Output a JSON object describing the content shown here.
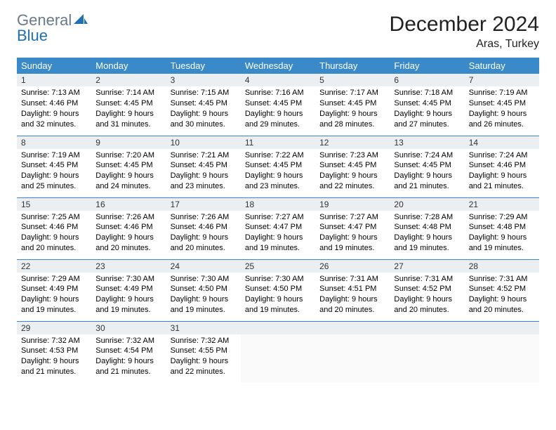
{
  "logo": {
    "gray_text": "General",
    "blue_text": "Blue"
  },
  "title": "December 2024",
  "location": "Aras, Turkey",
  "colors": {
    "header_bg": "#3a8ac9",
    "header_text": "#ffffff",
    "daynum_bg": "#eceff1",
    "row_divider": "#3a8ac9",
    "logo_gray": "#6a7a8a",
    "logo_blue": "#1f6fb2"
  },
  "weekdays": [
    "Sunday",
    "Monday",
    "Tuesday",
    "Wednesday",
    "Thursday",
    "Friday",
    "Saturday"
  ],
  "days": [
    {
      "n": 1,
      "sr": "7:13 AM",
      "ss": "4:46 PM",
      "dl": "9 hours and 32 minutes."
    },
    {
      "n": 2,
      "sr": "7:14 AM",
      "ss": "4:45 PM",
      "dl": "9 hours and 31 minutes."
    },
    {
      "n": 3,
      "sr": "7:15 AM",
      "ss": "4:45 PM",
      "dl": "9 hours and 30 minutes."
    },
    {
      "n": 4,
      "sr": "7:16 AM",
      "ss": "4:45 PM",
      "dl": "9 hours and 29 minutes."
    },
    {
      "n": 5,
      "sr": "7:17 AM",
      "ss": "4:45 PM",
      "dl": "9 hours and 28 minutes."
    },
    {
      "n": 6,
      "sr": "7:18 AM",
      "ss": "4:45 PM",
      "dl": "9 hours and 27 minutes."
    },
    {
      "n": 7,
      "sr": "7:19 AM",
      "ss": "4:45 PM",
      "dl": "9 hours and 26 minutes."
    },
    {
      "n": 8,
      "sr": "7:19 AM",
      "ss": "4:45 PM",
      "dl": "9 hours and 25 minutes."
    },
    {
      "n": 9,
      "sr": "7:20 AM",
      "ss": "4:45 PM",
      "dl": "9 hours and 24 minutes."
    },
    {
      "n": 10,
      "sr": "7:21 AM",
      "ss": "4:45 PM",
      "dl": "9 hours and 23 minutes."
    },
    {
      "n": 11,
      "sr": "7:22 AM",
      "ss": "4:45 PM",
      "dl": "9 hours and 23 minutes."
    },
    {
      "n": 12,
      "sr": "7:23 AM",
      "ss": "4:45 PM",
      "dl": "9 hours and 22 minutes."
    },
    {
      "n": 13,
      "sr": "7:24 AM",
      "ss": "4:45 PM",
      "dl": "9 hours and 21 minutes."
    },
    {
      "n": 14,
      "sr": "7:24 AM",
      "ss": "4:46 PM",
      "dl": "9 hours and 21 minutes."
    },
    {
      "n": 15,
      "sr": "7:25 AM",
      "ss": "4:46 PM",
      "dl": "9 hours and 20 minutes."
    },
    {
      "n": 16,
      "sr": "7:26 AM",
      "ss": "4:46 PM",
      "dl": "9 hours and 20 minutes."
    },
    {
      "n": 17,
      "sr": "7:26 AM",
      "ss": "4:46 PM",
      "dl": "9 hours and 20 minutes."
    },
    {
      "n": 18,
      "sr": "7:27 AM",
      "ss": "4:47 PM",
      "dl": "9 hours and 19 minutes."
    },
    {
      "n": 19,
      "sr": "7:27 AM",
      "ss": "4:47 PM",
      "dl": "9 hours and 19 minutes."
    },
    {
      "n": 20,
      "sr": "7:28 AM",
      "ss": "4:48 PM",
      "dl": "9 hours and 19 minutes."
    },
    {
      "n": 21,
      "sr": "7:29 AM",
      "ss": "4:48 PM",
      "dl": "9 hours and 19 minutes."
    },
    {
      "n": 22,
      "sr": "7:29 AM",
      "ss": "4:49 PM",
      "dl": "9 hours and 19 minutes."
    },
    {
      "n": 23,
      "sr": "7:30 AM",
      "ss": "4:49 PM",
      "dl": "9 hours and 19 minutes."
    },
    {
      "n": 24,
      "sr": "7:30 AM",
      "ss": "4:50 PM",
      "dl": "9 hours and 19 minutes."
    },
    {
      "n": 25,
      "sr": "7:30 AM",
      "ss": "4:50 PM",
      "dl": "9 hours and 19 minutes."
    },
    {
      "n": 26,
      "sr": "7:31 AM",
      "ss": "4:51 PM",
      "dl": "9 hours and 20 minutes."
    },
    {
      "n": 27,
      "sr": "7:31 AM",
      "ss": "4:52 PM",
      "dl": "9 hours and 20 minutes."
    },
    {
      "n": 28,
      "sr": "7:31 AM",
      "ss": "4:52 PM",
      "dl": "9 hours and 20 minutes."
    },
    {
      "n": 29,
      "sr": "7:32 AM",
      "ss": "4:53 PM",
      "dl": "9 hours and 21 minutes."
    },
    {
      "n": 30,
      "sr": "7:32 AM",
      "ss": "4:54 PM",
      "dl": "9 hours and 21 minutes."
    },
    {
      "n": 31,
      "sr": "7:32 AM",
      "ss": "4:55 PM",
      "dl": "9 hours and 22 minutes."
    }
  ],
  "labels": {
    "sunrise": "Sunrise:",
    "sunset": "Sunset:",
    "daylight": "Daylight:"
  },
  "layout": {
    "start_weekday": 0,
    "trailing_empty": 4,
    "font_family": "Arial",
    "daynum_fontsize": 12,
    "daytext_fontsize": 11,
    "header_fontsize": 13,
    "title_fontsize": 30,
    "location_fontsize": 16
  }
}
